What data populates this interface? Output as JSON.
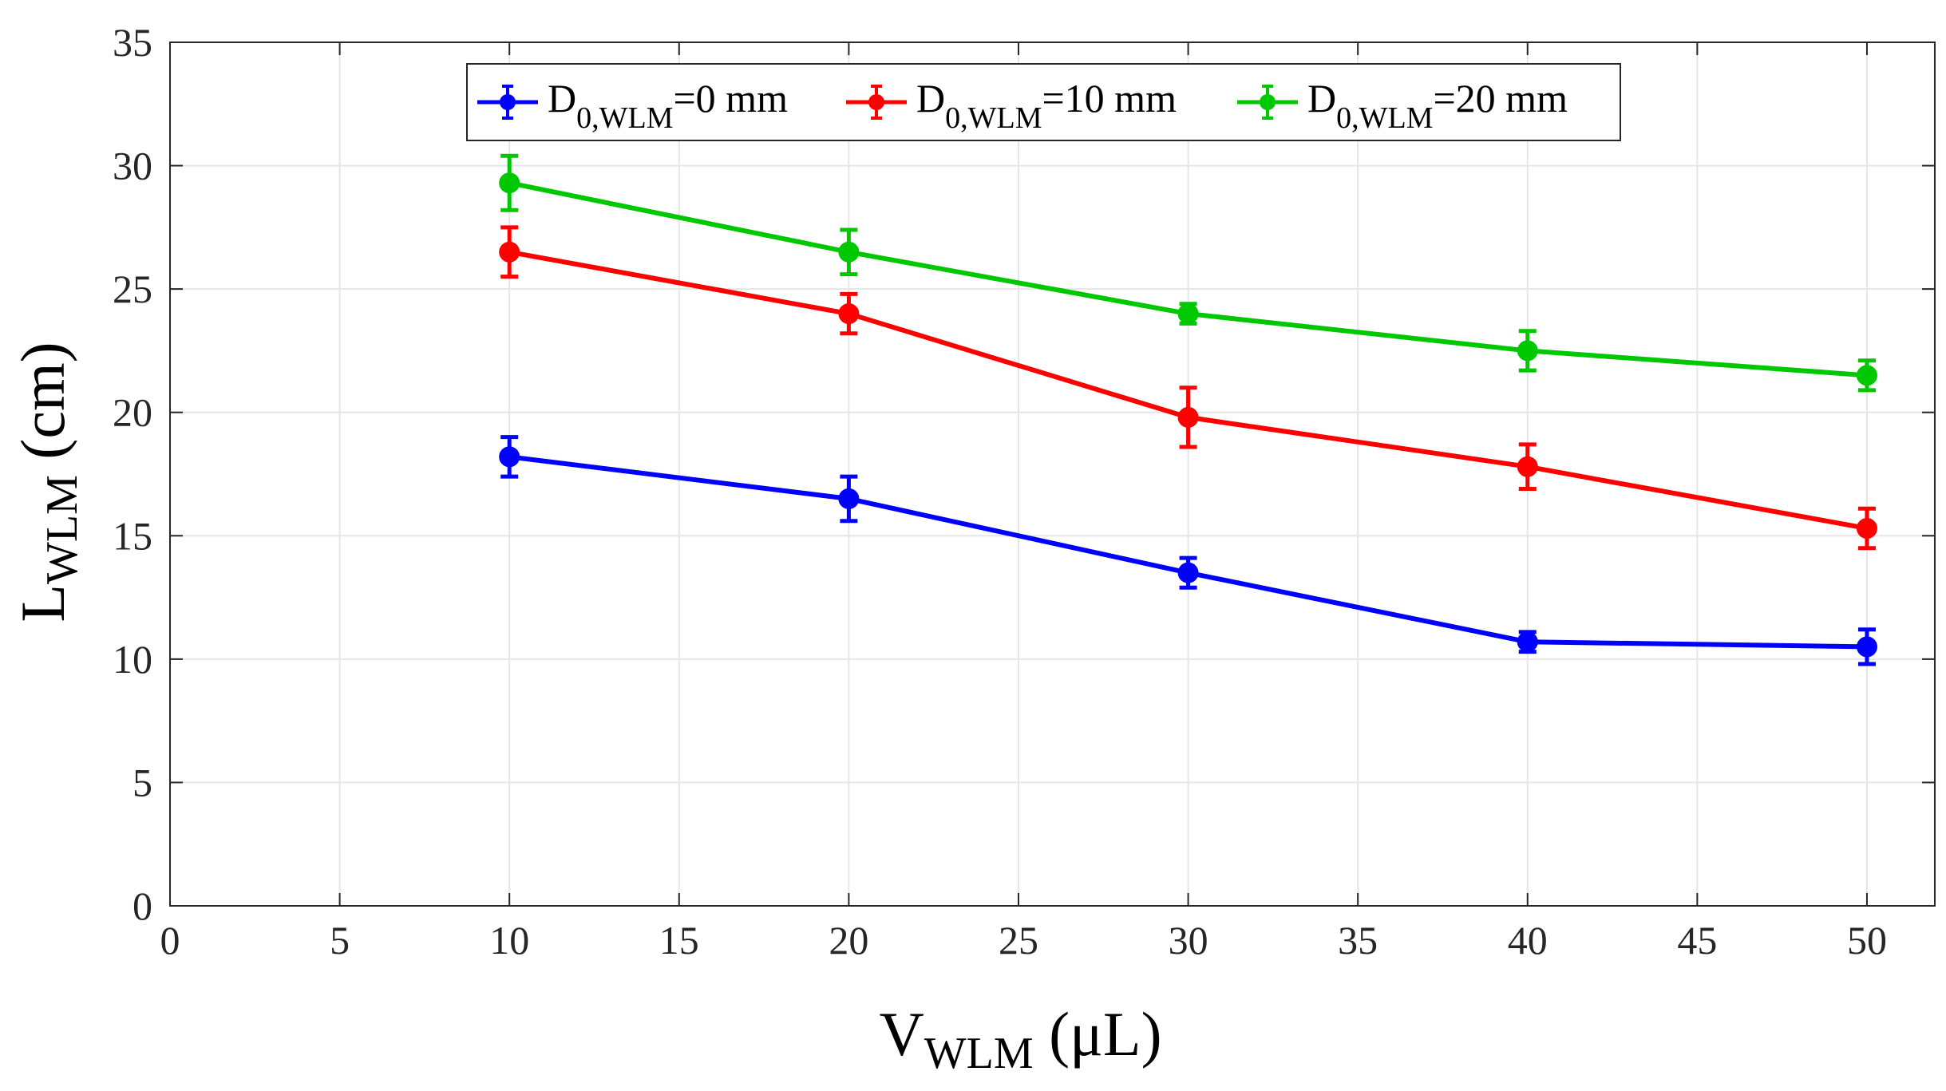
{
  "chart_data": {
    "type": "line",
    "title": "",
    "xlabel": {
      "main": "V",
      "subscript": "WLM",
      "unit": " (μL)"
    },
    "ylabel": {
      "main": "L",
      "subscript": "WLM",
      "unit": " (cm)"
    },
    "xlim": [
      0,
      52
    ],
    "ylim": [
      0,
      35
    ],
    "xticks": [
      0,
      5,
      10,
      15,
      20,
      25,
      30,
      35,
      40,
      45,
      50
    ],
    "yticks": [
      0,
      5,
      10,
      15,
      20,
      25,
      30,
      35
    ],
    "grid": true,
    "legend_position": "top-center",
    "x": [
      10,
      20,
      30,
      40,
      50
    ],
    "series": [
      {
        "name": {
          "main": "D",
          "subscript": "0,WLM",
          "suffix": "=0 mm"
        },
        "color": "#0000ff",
        "values": [
          18.2,
          16.5,
          13.5,
          10.7,
          10.5
        ],
        "errors": [
          0.8,
          0.9,
          0.6,
          0.4,
          0.7
        ]
      },
      {
        "name": {
          "main": "D",
          "subscript": "0,WLM",
          "suffix": "=10 mm"
        },
        "color": "#ff0000",
        "values": [
          26.5,
          24.0,
          19.8,
          17.8,
          15.3
        ],
        "errors": [
          1.0,
          0.8,
          1.2,
          0.9,
          0.8
        ]
      },
      {
        "name": {
          "main": "D",
          "subscript": "0,WLM",
          "suffix": "=20 mm"
        },
        "color": "#00c800",
        "values": [
          29.3,
          26.5,
          24.0,
          22.5,
          21.5
        ],
        "errors": [
          1.1,
          0.9,
          0.4,
          0.8,
          0.6
        ]
      }
    ]
  }
}
